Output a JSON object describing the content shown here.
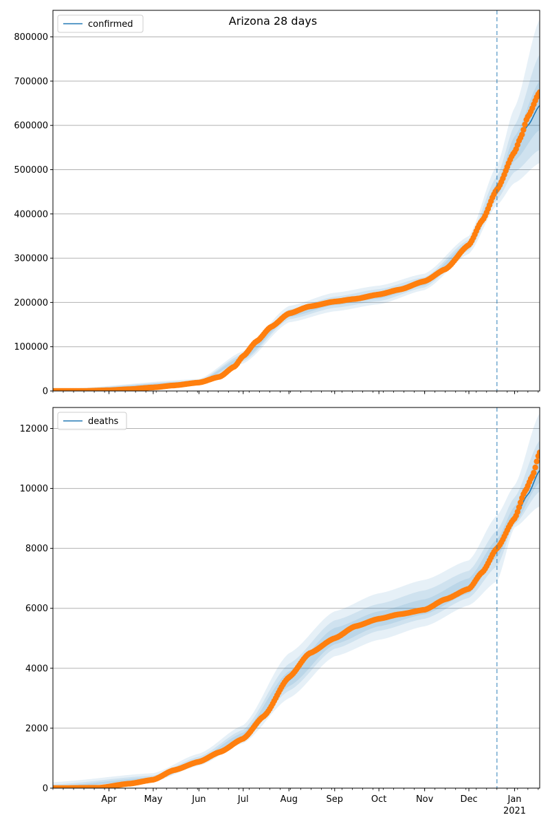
{
  "figure_title": "Arizona 28 days",
  "colors": {
    "model": "#1f77b4",
    "observed": "#ff7f0e",
    "band": "#1f77b4",
    "grid": "#b0b0b0"
  },
  "x_axis": {
    "start": "2020-02-23",
    "end": "2021-01-18",
    "month_ticks": [
      {
        "date": "2020-04-01",
        "label": "Apr"
      },
      {
        "date": "2020-05-01",
        "label": "May"
      },
      {
        "date": "2020-06-01",
        "label": "Jun"
      },
      {
        "date": "2020-07-01",
        "label": "Jul"
      },
      {
        "date": "2020-08-01",
        "label": "Aug"
      },
      {
        "date": "2020-09-01",
        "label": "Sep"
      },
      {
        "date": "2020-10-01",
        "label": "Oct"
      },
      {
        "date": "2020-11-01",
        "label": "Nov"
      },
      {
        "date": "2020-12-01",
        "label": "Dec"
      },
      {
        "date": "2021-01-01",
        "label": "Jan"
      }
    ],
    "year_label": "2021",
    "forecast_start": "2020-12-20"
  },
  "chart_data": [
    {
      "type": "line",
      "legend": "confirmed",
      "legend_position": "upper-left",
      "grid": "horizontal",
      "ylim": [
        0,
        860000
      ],
      "yticks": [
        0,
        100000,
        200000,
        300000,
        400000,
        500000,
        600000,
        700000,
        800000
      ],
      "model_curve": [
        [
          "2020-02-23",
          0
        ],
        [
          "2020-03-15",
          300
        ],
        [
          "2020-04-01",
          1500
        ],
        [
          "2020-04-15",
          4000
        ],
        [
          "2020-05-01",
          8000
        ],
        [
          "2020-05-15",
          13000
        ],
        [
          "2020-06-01",
          20000
        ],
        [
          "2020-06-15",
          33000
        ],
        [
          "2020-06-25",
          55000
        ],
        [
          "2020-07-01",
          75000
        ],
        [
          "2020-07-10",
          110000
        ],
        [
          "2020-07-20",
          145000
        ],
        [
          "2020-08-01",
          172000
        ],
        [
          "2020-08-15",
          190000
        ],
        [
          "2020-09-01",
          200000
        ],
        [
          "2020-09-15",
          207000
        ],
        [
          "2020-10-01",
          216000
        ],
        [
          "2020-10-15",
          227000
        ],
        [
          "2020-11-01",
          245000
        ],
        [
          "2020-11-15",
          270000
        ],
        [
          "2020-12-01",
          330000
        ],
        [
          "2020-12-10",
          390000
        ],
        [
          "2020-12-20",
          455000
        ],
        [
          "2021-01-01",
          545000
        ],
        [
          "2021-01-10",
          600000
        ],
        [
          "2021-01-18",
          645000
        ]
      ],
      "bands": [
        {
          "lower": [
            [
              "2020-02-23",
              0
            ],
            [
              "2020-06-01",
              14000
            ],
            [
              "2020-07-01",
              62000
            ],
            [
              "2020-08-01",
              155000
            ],
            [
              "2020-09-01",
              180000
            ],
            [
              "2020-10-01",
              196000
            ],
            [
              "2020-11-01",
              228000
            ],
            [
              "2020-12-01",
              310000
            ],
            [
              "2020-12-20",
              420000
            ],
            [
              "2021-01-01",
              470000
            ],
            [
              "2021-01-18",
              515000
            ]
          ],
          "upper": [
            [
              "2020-02-23",
              3000
            ],
            [
              "2020-06-01",
              27000
            ],
            [
              "2020-07-01",
              90000
            ],
            [
              "2020-08-01",
              192000
            ],
            [
              "2020-09-01",
              222000
            ],
            [
              "2020-10-01",
              238000
            ],
            [
              "2020-11-01",
              265000
            ],
            [
              "2020-12-01",
              350000
            ],
            [
              "2020-12-20",
              510000
            ],
            [
              "2021-01-01",
              640000
            ],
            [
              "2021-01-18",
              840000
            ]
          ]
        },
        {
          "lower": [
            [
              "2020-02-23",
              0
            ],
            [
              "2020-06-01",
              16000
            ],
            [
              "2020-07-01",
              67000
            ],
            [
              "2020-08-01",
              162000
            ],
            [
              "2020-09-01",
              188000
            ],
            [
              "2020-10-01",
              203000
            ],
            [
              "2020-11-01",
              234000
            ],
            [
              "2020-12-01",
              318000
            ],
            [
              "2020-12-20",
              432000
            ],
            [
              "2021-01-01",
              495000
            ],
            [
              "2021-01-18",
              545000
            ]
          ],
          "upper": [
            [
              "2020-02-23",
              2000
            ],
            [
              "2020-06-01",
              24000
            ],
            [
              "2020-07-01",
              84000
            ],
            [
              "2020-08-01",
              184000
            ],
            [
              "2020-09-01",
              213000
            ],
            [
              "2020-10-01",
              230000
            ],
            [
              "2020-11-01",
              257000
            ],
            [
              "2020-12-01",
              342000
            ],
            [
              "2020-12-20",
              485000
            ],
            [
              "2021-01-01",
              600000
            ],
            [
              "2021-01-18",
              760000
            ]
          ]
        },
        {
          "lower": [
            [
              "2020-02-23",
              0
            ],
            [
              "2020-06-01",
              18000
            ],
            [
              "2020-07-01",
              71000
            ],
            [
              "2020-08-01",
              167000
            ],
            [
              "2020-09-01",
              194000
            ],
            [
              "2020-10-01",
              209000
            ],
            [
              "2020-11-01",
              239000
            ],
            [
              "2020-12-01",
              324000
            ],
            [
              "2020-12-20",
              442000
            ],
            [
              "2021-01-01",
              520000
            ],
            [
              "2021-01-18",
              590000
            ]
          ],
          "upper": [
            [
              "2020-02-23",
              1000
            ],
            [
              "2020-06-01",
              22000
            ],
            [
              "2020-07-01",
              79000
            ],
            [
              "2020-08-01",
              178000
            ],
            [
              "2020-09-01",
              206000
            ],
            [
              "2020-10-01",
              223000
            ],
            [
              "2020-11-01",
              251000
            ],
            [
              "2020-12-01",
              336000
            ],
            [
              "2020-12-20",
              468000
            ],
            [
              "2021-01-01",
              575000
            ],
            [
              "2021-01-18",
              700000
            ]
          ]
        }
      ],
      "observed": [
        [
          "2020-02-23",
          0
        ],
        [
          "2020-03-15",
          100
        ],
        [
          "2020-04-01",
          1600
        ],
        [
          "2020-04-15",
          4000
        ],
        [
          "2020-05-01",
          8000
        ],
        [
          "2020-05-15",
          12500
        ],
        [
          "2020-06-01",
          19000
        ],
        [
          "2020-06-15",
          32000
        ],
        [
          "2020-06-25",
          55000
        ],
        [
          "2020-07-01",
          79000
        ],
        [
          "2020-07-10",
          112000
        ],
        [
          "2020-07-20",
          145000
        ],
        [
          "2020-08-01",
          175000
        ],
        [
          "2020-08-15",
          191000
        ],
        [
          "2020-09-01",
          202000
        ],
        [
          "2020-09-15",
          208000
        ],
        [
          "2020-10-01",
          218000
        ],
        [
          "2020-10-15",
          229000
        ],
        [
          "2020-11-01",
          248000
        ],
        [
          "2020-11-15",
          275000
        ],
        [
          "2020-12-01",
          330000
        ],
        [
          "2020-12-10",
          385000
        ],
        [
          "2020-12-20",
          455000
        ],
        [
          "2021-01-01",
          540000
        ],
        [
          "2021-01-05",
          572000
        ],
        [
          "2021-01-10",
          620000
        ],
        [
          "2021-01-18",
          675000
        ]
      ]
    },
    {
      "type": "line",
      "legend": "deaths",
      "legend_position": "upper-left",
      "grid": "horizontal",
      "ylim": [
        0,
        12700
      ],
      "yticks": [
        0,
        2000,
        4000,
        6000,
        8000,
        10000,
        12000
      ],
      "model_curve": [
        [
          "2020-02-23",
          0
        ],
        [
          "2020-03-25",
          10
        ],
        [
          "2020-04-15",
          150
        ],
        [
          "2020-05-01",
          300
        ],
        [
          "2020-05-15",
          600
        ],
        [
          "2020-06-01",
          900
        ],
        [
          "2020-06-15",
          1200
        ],
        [
          "2020-07-01",
          1700
        ],
        [
          "2020-07-15",
          2400
        ],
        [
          "2020-08-01",
          3600
        ],
        [
          "2020-08-15",
          4500
        ],
        [
          "2020-09-01",
          5050
        ],
        [
          "2020-09-15",
          5400
        ],
        [
          "2020-10-01",
          5650
        ],
        [
          "2020-10-15",
          5800
        ],
        [
          "2020-11-01",
          6000
        ],
        [
          "2020-11-15",
          6300
        ],
        [
          "2020-12-01",
          6700
        ],
        [
          "2020-12-10",
          7300
        ],
        [
          "2020-12-20",
          8000
        ],
        [
          "2021-01-01",
          9000
        ],
        [
          "2021-01-10",
          9800
        ],
        [
          "2021-01-18",
          10600
        ]
      ],
      "bands": [
        {
          "lower": [
            [
              "2020-02-23",
              0
            ],
            [
              "2020-05-01",
              220
            ],
            [
              "2020-06-01",
              750
            ],
            [
              "2020-07-01",
              1500
            ],
            [
              "2020-08-01",
              3000
            ],
            [
              "2020-09-01",
              4400
            ],
            [
              "2020-10-01",
              4950
            ],
            [
              "2020-11-01",
              5400
            ],
            [
              "2020-12-01",
              6100
            ],
            [
              "2020-12-20",
              6900
            ],
            [
              "2021-01-01",
              8700
            ],
            [
              "2021-01-18",
              9400
            ]
          ],
          "upper": [
            [
              "2020-02-23",
              200
            ],
            [
              "2020-05-01",
              500
            ],
            [
              "2020-06-01",
              1150
            ],
            [
              "2020-07-01",
              2100
            ],
            [
              "2020-08-01",
              4500
            ],
            [
              "2020-09-01",
              5900
            ],
            [
              "2020-10-01",
              6500
            ],
            [
              "2020-11-01",
              6950
            ],
            [
              "2020-12-01",
              7600
            ],
            [
              "2020-12-20",
              9100
            ],
            [
              "2021-01-01",
              10100
            ],
            [
              "2021-01-18",
              12500
            ]
          ]
        },
        {
          "lower": [
            [
              "2020-02-23",
              0
            ],
            [
              "2020-05-01",
              250
            ],
            [
              "2020-06-01",
              800
            ],
            [
              "2020-07-01",
              1580
            ],
            [
              "2020-08-01",
              3250
            ],
            [
              "2020-09-01",
              4650
            ],
            [
              "2020-10-01",
              5250
            ],
            [
              "2020-11-01",
              5650
            ],
            [
              "2020-12-01",
              6350
            ],
            [
              "2020-12-20",
              7400
            ],
            [
              "2021-01-01",
              8800
            ],
            [
              "2021-01-18",
              9900
            ]
          ],
          "upper": [
            [
              "2020-02-23",
              120
            ],
            [
              "2020-05-01",
              420
            ],
            [
              "2020-06-01",
              1050
            ],
            [
              "2020-07-01",
              1950
            ],
            [
              "2020-08-01",
              4150
            ],
            [
              "2020-09-01",
              5600
            ],
            [
              "2020-10-01",
              6150
            ],
            [
              "2020-11-01",
              6600
            ],
            [
              "2020-12-01",
              7250
            ],
            [
              "2020-12-20",
              8600
            ],
            [
              "2021-01-01",
              9700
            ],
            [
              "2021-01-18",
              11600
            ]
          ]
        },
        {
          "lower": [
            [
              "2020-02-23",
              0
            ],
            [
              "2020-05-01",
              270
            ],
            [
              "2020-06-01",
              850
            ],
            [
              "2020-07-01",
              1630
            ],
            [
              "2020-08-01",
              3400
            ],
            [
              "2020-09-01",
              4800
            ],
            [
              "2020-10-01",
              5400
            ],
            [
              "2020-11-01",
              5800
            ],
            [
              "2020-12-01",
              6500
            ],
            [
              "2020-12-20",
              7700
            ],
            [
              "2021-01-01",
              8850
            ],
            [
              "2021-01-18",
              10200
            ]
          ],
          "upper": [
            [
              "2020-02-23",
              60
            ],
            [
              "2020-05-01",
              360
            ],
            [
              "2020-06-01",
              980
            ],
            [
              "2020-07-01",
              1850
            ],
            [
              "2020-08-01",
              3900
            ],
            [
              "2020-09-01",
              5350
            ],
            [
              "2020-10-01",
              5900
            ],
            [
              "2020-11-01",
              6300
            ],
            [
              "2020-12-01",
              7000
            ],
            [
              "2020-12-20",
              8300
            ],
            [
              "2021-01-01",
              9400
            ],
            [
              "2021-01-18",
              11100
            ]
          ]
        }
      ],
      "observed": [
        [
          "2020-02-23",
          0
        ],
        [
          "2020-03-25",
          10
        ],
        [
          "2020-04-15",
          150
        ],
        [
          "2020-05-01",
          280
        ],
        [
          "2020-05-15",
          600
        ],
        [
          "2020-06-01",
          880
        ],
        [
          "2020-06-15",
          1200
        ],
        [
          "2020-07-01",
          1650
        ],
        [
          "2020-07-15",
          2400
        ],
        [
          "2020-08-01",
          3700
        ],
        [
          "2020-08-15",
          4500
        ],
        [
          "2020-09-01",
          5000
        ],
        [
          "2020-09-15",
          5400
        ],
        [
          "2020-10-01",
          5650
        ],
        [
          "2020-10-15",
          5800
        ],
        [
          "2020-11-01",
          5950
        ],
        [
          "2020-11-15",
          6300
        ],
        [
          "2020-12-01",
          6650
        ],
        [
          "2020-12-10",
          7200
        ],
        [
          "2020-12-20",
          8000
        ],
        [
          "2021-01-01",
          9000
        ],
        [
          "2021-01-08",
          9900
        ],
        [
          "2021-01-13",
          10400
        ],
        [
          "2021-01-18",
          11200
        ]
      ]
    }
  ]
}
